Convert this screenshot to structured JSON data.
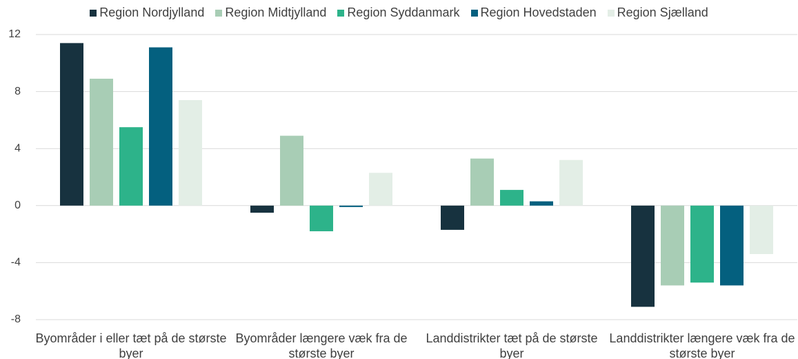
{
  "chart_data": {
    "type": "bar",
    "categories": [
      "Byområder i eller tæt på de største byer",
      "Byområder længere væk fra de største byer",
      "Landdistrikter tæt på de største byer",
      "Landdistrikter længere væk fra de største byer"
    ],
    "series": [
      {
        "name": "Region Nordjylland",
        "color": "#17323f",
        "values": [
          11.4,
          -0.5,
          -1.7,
          -7.1
        ]
      },
      {
        "name": "Region Midtjylland",
        "color": "#a8cdb5",
        "values": [
          8.9,
          4.9,
          3.3,
          -5.6
        ]
      },
      {
        "name": "Region Syddanmark",
        "color": "#2db38a",
        "values": [
          5.5,
          -1.8,
          1.1,
          -5.4
        ]
      },
      {
        "name": "Region Hovedstaden",
        "color": "#04607f",
        "values": [
          11.1,
          -0.1,
          0.3,
          -5.6
        ]
      },
      {
        "name": "Region Sjælland",
        "color": "#e3eee6",
        "values": [
          7.4,
          2.3,
          3.2,
          -3.4
        ]
      }
    ],
    "ylim": [
      -8,
      12
    ],
    "yticks": [
      -8,
      -4,
      0,
      4,
      8,
      12
    ],
    "grid": true,
    "legend": "top"
  }
}
